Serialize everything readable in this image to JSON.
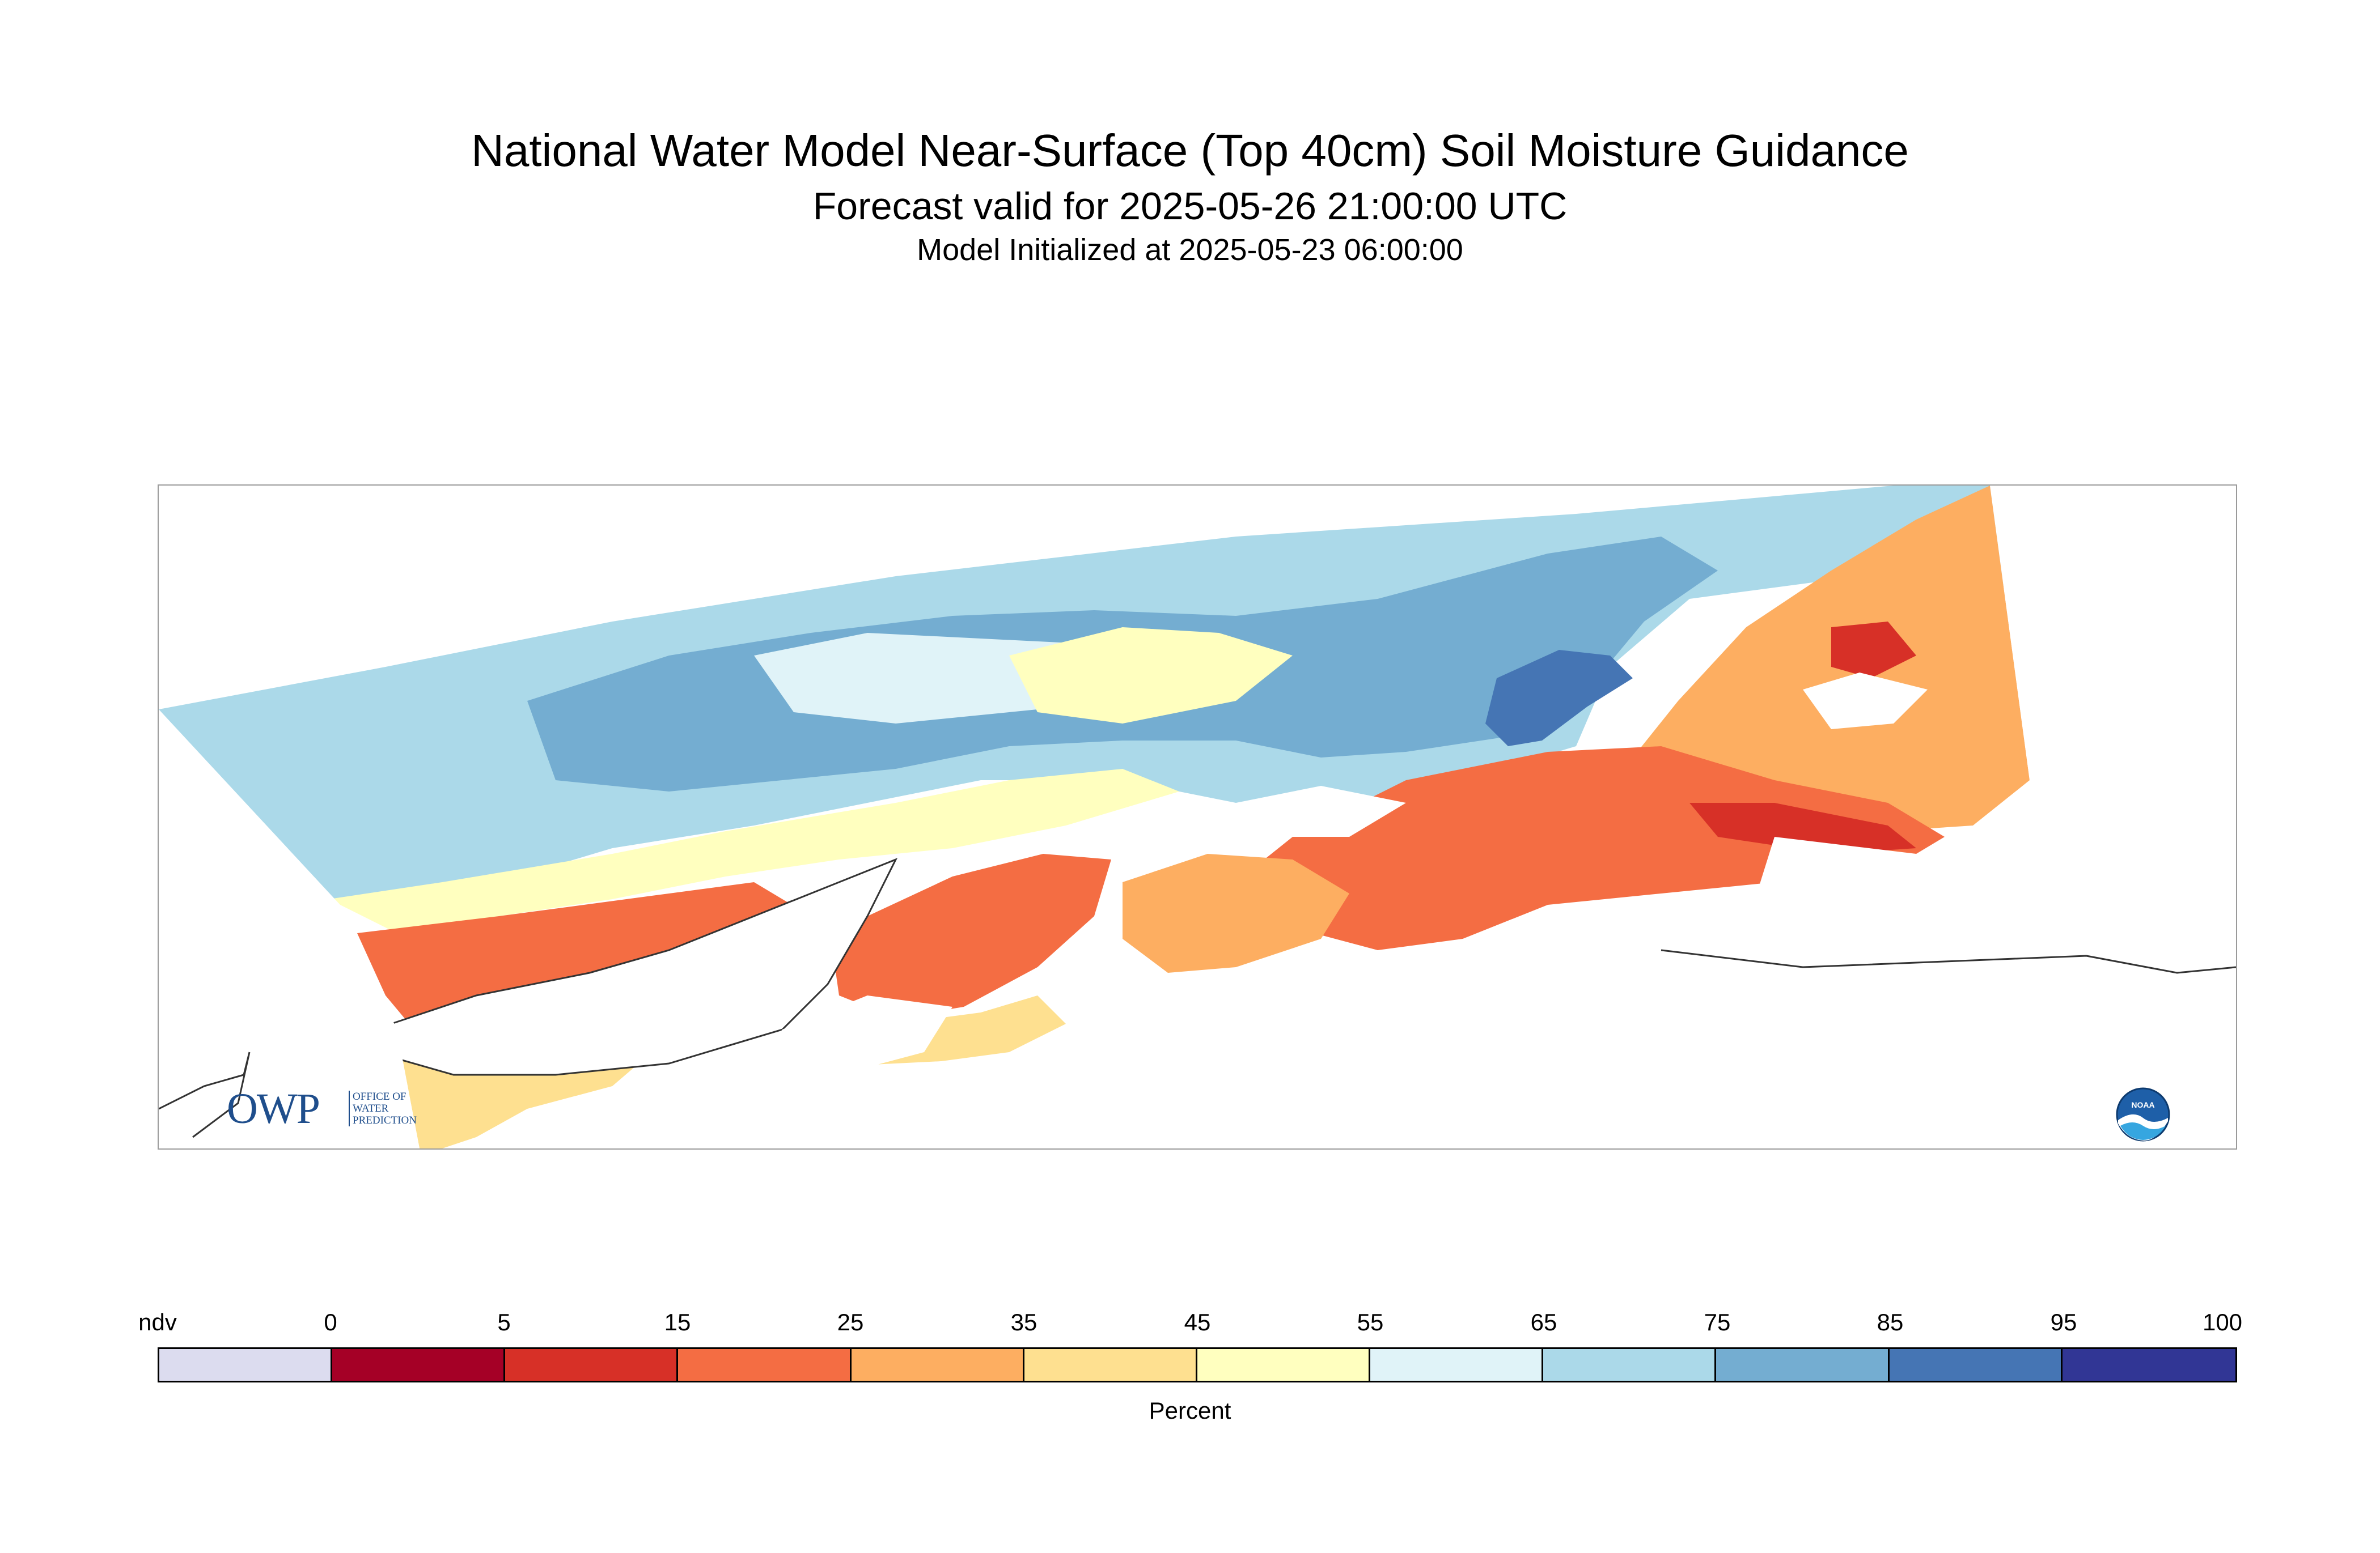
{
  "header": {
    "title": "National Water Model Near-Surface (Top 40cm) Soil Moisture Guidance",
    "forecast_valid": "Forecast valid for 2025-05-26 21:00:00 UTC",
    "model_initialized": "Model Initialized at 2025-05-23 06:00:00"
  },
  "map": {
    "region": "Southern Alaska",
    "logos": {
      "owp_letters": "OWP",
      "owp_sub_lines": [
        "OFFICE OF",
        "WATER",
        "PREDICTION"
      ],
      "noaa_letters": "NOAA"
    }
  },
  "legend": {
    "label": "Percent",
    "ticks": [
      "ndv",
      "0",
      "5",
      "15",
      "25",
      "35",
      "45",
      "55",
      "65",
      "75",
      "85",
      "95",
      "100"
    ],
    "segments": [
      {
        "range": "ndv",
        "color": "#dcdcef"
      },
      {
        "range": "0-5",
        "color": "#a50026"
      },
      {
        "range": "5-15",
        "color": "#d73027"
      },
      {
        "range": "15-25",
        "color": "#f46d43"
      },
      {
        "range": "25-35",
        "color": "#fdae61"
      },
      {
        "range": "35-45",
        "color": "#fee090"
      },
      {
        "range": "45-55",
        "color": "#ffffbf"
      },
      {
        "range": "55-65",
        "color": "#e0f3f8"
      },
      {
        "range": "65-75",
        "color": "#abd9e9"
      },
      {
        "range": "75-85",
        "color": "#74add1"
      },
      {
        "range": "85-95",
        "color": "#4575b4"
      },
      {
        "range": "95-100",
        "color": "#313695"
      }
    ]
  }
}
